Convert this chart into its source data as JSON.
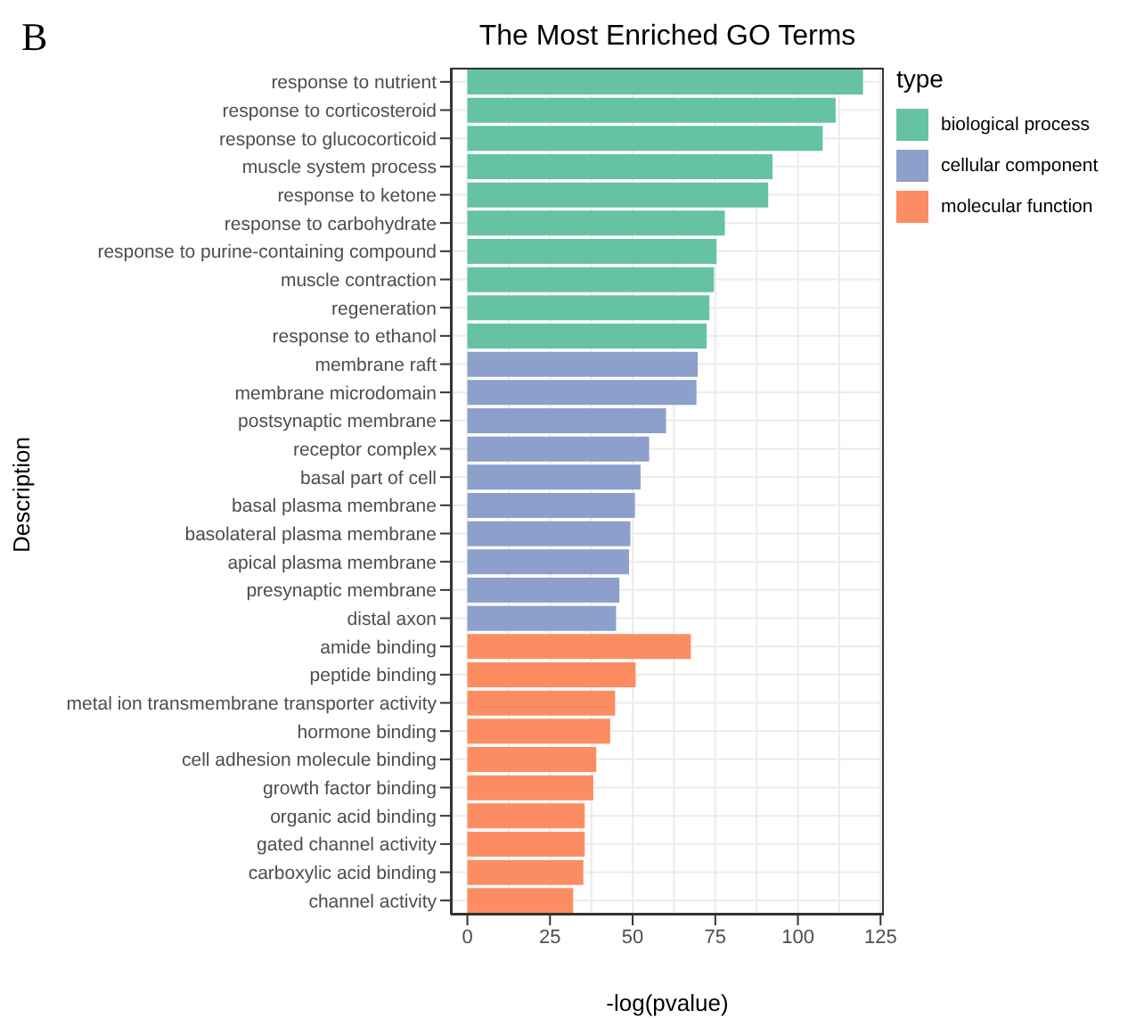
{
  "chart_data": {
    "type": "bar",
    "orientation": "horizontal",
    "title": "The Most Enriched GO Terms",
    "xlabel": "-log(pvalue)",
    "ylabel": "Description",
    "legend_title": "type",
    "legend": "right",
    "grid": true,
    "annotations": [
      "B"
    ],
    "categories": [
      "response to nutrient",
      "response to corticosteroid",
      "response to glucocorticoid",
      "muscle system process",
      "response to ketone",
      "response to carbohydrate",
      "response to purine-containing compound",
      "muscle contraction",
      "regeneration",
      "response to ethanol",
      "membrane raft",
      "membrane microdomain",
      "postsynaptic membrane",
      "receptor complex",
      "basal part of cell",
      "basal plasma membrane",
      "basolateral plasma membrane",
      "apical plasma membrane",
      "presynaptic membrane",
      "distal axon",
      "amide binding",
      "peptide binding",
      "metal ion transmembrane transporter activity",
      "hormone binding",
      "cell adhesion molecule binding",
      "growth factor binding",
      "organic acid binding",
      "gated channel activity",
      "carboxylic acid binding",
      "channel activity"
    ],
    "xlim": [
      -5,
      126
    ],
    "xticks": [
      0,
      25,
      50,
      75,
      100,
      125
    ],
    "series": [
      {
        "name": "biological process",
        "color": "#66c2a5",
        "values": [
          119.7,
          111.4,
          107.5,
          92.3,
          91.0,
          77.9,
          75.4,
          74.6,
          73.2,
          72.4,
          null,
          null,
          null,
          null,
          null,
          null,
          null,
          null,
          null,
          null,
          null,
          null,
          null,
          null,
          null,
          null,
          null,
          null,
          null,
          null
        ]
      },
      {
        "name": "cellular component",
        "color": "#8da0cb",
        "values": [
          null,
          null,
          null,
          null,
          null,
          null,
          null,
          null,
          null,
          null,
          69.7,
          69.3,
          60.1,
          55.0,
          52.4,
          50.7,
          49.3,
          48.9,
          46.0,
          45.0,
          null,
          null,
          null,
          null,
          null,
          null,
          null,
          null,
          null,
          null
        ]
      },
      {
        "name": "molecular function",
        "color": "#fc8d62",
        "values": [
          null,
          null,
          null,
          null,
          null,
          null,
          null,
          null,
          null,
          null,
          null,
          null,
          null,
          null,
          null,
          null,
          null,
          null,
          null,
          null,
          67.6,
          50.9,
          44.7,
          43.2,
          39.0,
          38.1,
          35.5,
          35.5,
          35.1,
          32.0
        ]
      }
    ]
  }
}
